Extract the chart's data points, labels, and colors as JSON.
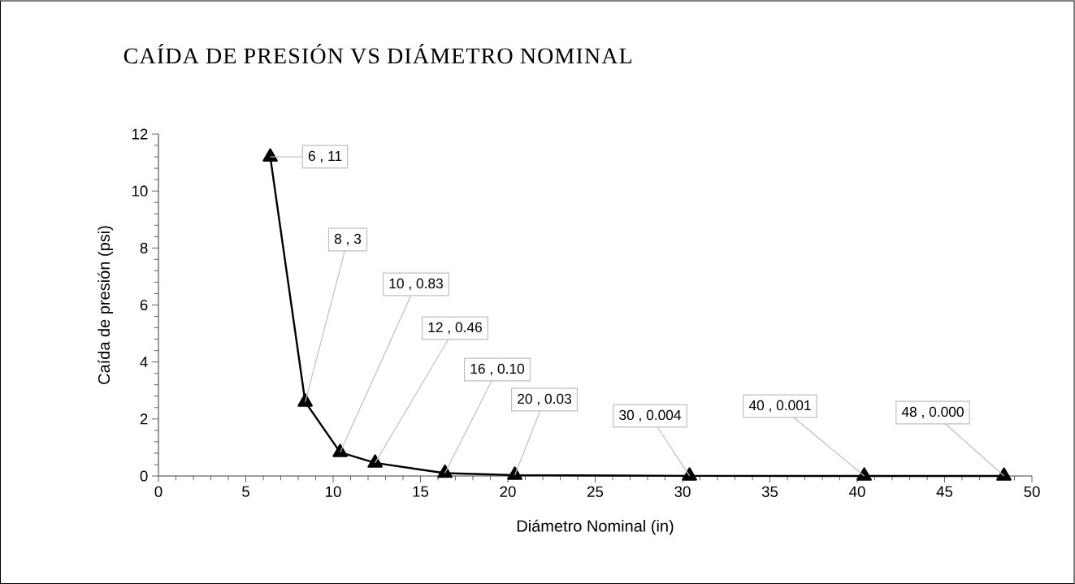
{
  "chart_data": {
    "type": "line",
    "title": "CAÍDA DE PRESIÓN VS DIÁMETRO NOMINAL",
    "xlabel": "Diámetro Nominal (in)",
    "ylabel": "Caída de presión (psi)",
    "x": [
      6.4,
      8.4,
      10.4,
      12.4,
      16.4,
      20.4,
      30.4,
      40.4,
      48.4
    ],
    "series": [
      {
        "color": "#000000",
        "values": [
          11.2,
          2.6,
          0.83,
          0.46,
          0.1,
          0.03,
          0.004,
          0.001,
          0.0
        ],
        "value_labels": [
          "6 , 11",
          "8 , 3",
          "10 , 0.83",
          "12 , 0.46",
          "16 , 0.10",
          "20 , 0.03",
          "30 , 0.004",
          "40 , 0.001",
          "48 , 0.000"
        ]
      }
    ],
    "xlim": [
      0,
      50
    ],
    "xticks": [
      0,
      5,
      10,
      15,
      20,
      25,
      30,
      35,
      40,
      45,
      50
    ],
    "ylim": [
      0,
      12
    ],
    "yticks": [
      0,
      2,
      4,
      6,
      8,
      10,
      12
    ],
    "marker": "triangle",
    "line_style": "solid"
  }
}
